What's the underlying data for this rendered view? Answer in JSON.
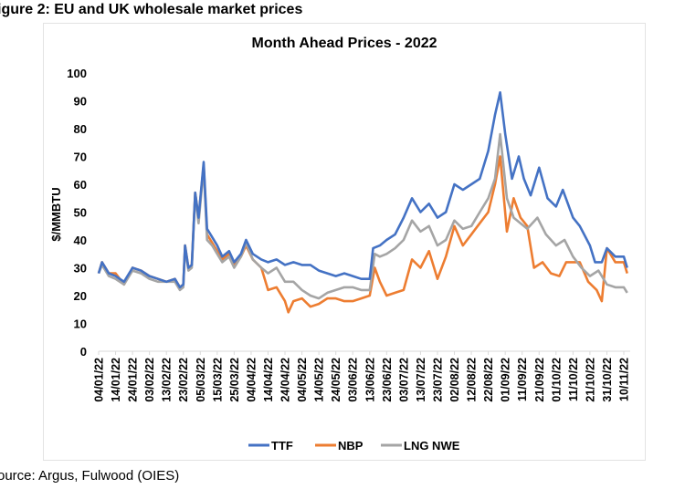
{
  "figure_title": "igure 2: EU and UK wholesale market prices",
  "source": "ource: Argus, Fulwood (OIES)",
  "chart_data": {
    "type": "line",
    "title": "Month Ahead Prices - 2022",
    "ylabel": "$/MMBTU",
    "xlabel": "",
    "ylim": [
      0,
      100
    ],
    "yticks": [
      0,
      10,
      20,
      30,
      40,
      50,
      60,
      70,
      80,
      90,
      100
    ],
    "xtick_labels": [
      "04/01/22",
      "14/01/22",
      "24/01/22",
      "03/02/22",
      "13/02/22",
      "23/02/22",
      "05/03/22",
      "15/03/22",
      "25/03/22",
      "04/04/22",
      "14/04/22",
      "24/04/22",
      "04/05/22",
      "14/05/22",
      "24/05/22",
      "03/06/22",
      "13/06/22",
      "23/06/22",
      "03/07/22",
      "13/07/22",
      "23/07/22",
      "02/08/22",
      "12/08/22",
      "22/08/22",
      "01/09/22",
      "11/09/22",
      "21/09/22",
      "01/10/22",
      "11/10/22",
      "21/10/22",
      "31/10/22",
      "10/11/22"
    ],
    "grid": false,
    "legend_position": "bottom",
    "series": [
      {
        "name": "TTF",
        "color": "#4472C4",
        "points": [
          [
            "04/01/22",
            28
          ],
          [
            "06/01/22",
            32
          ],
          [
            "10/01/22",
            28
          ],
          [
            "14/01/22",
            27
          ],
          [
            "19/01/22",
            25
          ],
          [
            "24/01/22",
            30
          ],
          [
            "29/01/22",
            29
          ],
          [
            "03/02/22",
            27
          ],
          [
            "08/02/22",
            26
          ],
          [
            "13/02/22",
            25
          ],
          [
            "18/02/22",
            26
          ],
          [
            "21/02/22",
            23
          ],
          [
            "23/02/22",
            24
          ],
          [
            "24/02/22",
            38
          ],
          [
            "26/02/22",
            30
          ],
          [
            "28/02/22",
            31
          ],
          [
            "02/03/22",
            57
          ],
          [
            "04/03/22",
            48
          ],
          [
            "07/03/22",
            68
          ],
          [
            "09/03/22",
            44
          ],
          [
            "12/03/22",
            41
          ],
          [
            "15/03/22",
            38
          ],
          [
            "18/03/22",
            34
          ],
          [
            "22/03/22",
            36
          ],
          [
            "25/03/22",
            32
          ],
          [
            "29/03/22",
            35
          ],
          [
            "01/04/22",
            40
          ],
          [
            "05/04/22",
            35
          ],
          [
            "10/04/22",
            33
          ],
          [
            "14/04/22",
            32
          ],
          [
            "19/04/22",
            33
          ],
          [
            "24/04/22",
            31
          ],
          [
            "29/04/22",
            32
          ],
          [
            "04/05/22",
            31
          ],
          [
            "09/05/22",
            31
          ],
          [
            "14/05/22",
            29
          ],
          [
            "19/05/22",
            28
          ],
          [
            "24/05/22",
            27
          ],
          [
            "29/05/22",
            28
          ],
          [
            "03/06/22",
            27
          ],
          [
            "08/06/22",
            26
          ],
          [
            "13/06/22",
            26
          ],
          [
            "15/06/22",
            37
          ],
          [
            "19/06/22",
            38
          ],
          [
            "23/06/22",
            40
          ],
          [
            "28/06/22",
            42
          ],
          [
            "03/07/22",
            48
          ],
          [
            "08/07/22",
            55
          ],
          [
            "13/07/22",
            50
          ],
          [
            "18/07/22",
            53
          ],
          [
            "23/07/22",
            48
          ],
          [
            "28/07/22",
            50
          ],
          [
            "02/08/22",
            60
          ],
          [
            "07/08/22",
            58
          ],
          [
            "12/08/22",
            60
          ],
          [
            "17/08/22",
            62
          ],
          [
            "22/08/22",
            72
          ],
          [
            "26/08/22",
            85
          ],
          [
            "29/08/22",
            93
          ],
          [
            "01/09/22",
            78
          ],
          [
            "05/09/22",
            62
          ],
          [
            "09/09/22",
            70
          ],
          [
            "12/09/22",
            62
          ],
          [
            "16/09/22",
            56
          ],
          [
            "21/09/22",
            66
          ],
          [
            "26/09/22",
            55
          ],
          [
            "01/10/22",
            52
          ],
          [
            "05/10/22",
            58
          ],
          [
            "11/10/22",
            48
          ],
          [
            "15/10/22",
            45
          ],
          [
            "21/10/22",
            38
          ],
          [
            "24/10/22",
            32
          ],
          [
            "28/10/22",
            32
          ],
          [
            "31/10/22",
            37
          ],
          [
            "05/11/22",
            34
          ],
          [
            "10/11/22",
            34
          ],
          [
            "12/11/22",
            30
          ]
        ]
      },
      {
        "name": "NBP",
        "color": "#ED7D31",
        "points": [
          [
            "04/01/22",
            28
          ],
          [
            "06/01/22",
            32
          ],
          [
            "10/01/22",
            28
          ],
          [
            "14/01/22",
            28
          ],
          [
            "19/01/22",
            24
          ],
          [
            "24/01/22",
            30
          ],
          [
            "29/01/22",
            29
          ],
          [
            "03/02/22",
            27
          ],
          [
            "08/02/22",
            26
          ],
          [
            "13/02/22",
            25
          ],
          [
            "18/02/22",
            26
          ],
          [
            "21/02/22",
            23
          ],
          [
            "23/02/22",
            24
          ],
          [
            "24/02/22",
            38
          ],
          [
            "26/02/22",
            30
          ],
          [
            "28/02/22",
            31
          ],
          [
            "02/03/22",
            57
          ],
          [
            "04/03/22",
            48
          ],
          [
            "07/03/22",
            67
          ],
          [
            "09/03/22",
            42
          ],
          [
            "12/03/22",
            39
          ],
          [
            "15/03/22",
            36
          ],
          [
            "18/03/22",
            33
          ],
          [
            "22/03/22",
            35
          ],
          [
            "25/03/22",
            31
          ],
          [
            "29/03/22",
            34
          ],
          [
            "01/04/22",
            38
          ],
          [
            "05/04/22",
            33
          ],
          [
            "10/04/22",
            30
          ],
          [
            "14/04/22",
            22
          ],
          [
            "19/04/22",
            23
          ],
          [
            "24/04/22",
            18
          ],
          [
            "26/04/22",
            14
          ],
          [
            "29/04/22",
            18
          ],
          [
            "04/05/22",
            19
          ],
          [
            "09/05/22",
            16
          ],
          [
            "14/05/22",
            17
          ],
          [
            "19/05/22",
            19
          ],
          [
            "24/05/22",
            19
          ],
          [
            "29/05/22",
            18
          ],
          [
            "03/06/22",
            18
          ],
          [
            "08/06/22",
            19
          ],
          [
            "13/06/22",
            20
          ],
          [
            "16/06/22",
            30
          ],
          [
            "19/06/22",
            25
          ],
          [
            "23/06/22",
            20
          ],
          [
            "28/06/22",
            21
          ],
          [
            "03/07/22",
            22
          ],
          [
            "08/07/22",
            33
          ],
          [
            "13/07/22",
            30
          ],
          [
            "18/07/22",
            36
          ],
          [
            "23/07/22",
            26
          ],
          [
            "28/07/22",
            34
          ],
          [
            "02/08/22",
            45
          ],
          [
            "07/08/22",
            38
          ],
          [
            "12/08/22",
            42
          ],
          [
            "17/08/22",
            46
          ],
          [
            "22/08/22",
            50
          ],
          [
            "26/08/22",
            60
          ],
          [
            "29/08/22",
            70
          ],
          [
            "02/09/22",
            43
          ],
          [
            "06/09/22",
            55
          ],
          [
            "10/09/22",
            48
          ],
          [
            "14/09/22",
            45
          ],
          [
            "18/09/22",
            30
          ],
          [
            "23/09/22",
            32
          ],
          [
            "28/09/22",
            28
          ],
          [
            "03/10/22",
            27
          ],
          [
            "07/10/22",
            32
          ],
          [
            "11/10/22",
            32
          ],
          [
            "15/10/22",
            32
          ],
          [
            "20/10/22",
            25
          ],
          [
            "25/10/22",
            22
          ],
          [
            "28/10/22",
            18
          ],
          [
            "31/10/22",
            37
          ],
          [
            "05/11/22",
            32
          ],
          [
            "10/11/22",
            32
          ],
          [
            "12/11/22",
            28
          ]
        ]
      },
      {
        "name": "LNG NWE",
        "color": "#A5A5A5",
        "points": [
          [
            "04/01/22",
            28
          ],
          [
            "06/01/22",
            31
          ],
          [
            "10/01/22",
            27
          ],
          [
            "14/01/22",
            26
          ],
          [
            "19/01/22",
            24
          ],
          [
            "24/01/22",
            29
          ],
          [
            "29/01/22",
            28
          ],
          [
            "03/02/22",
            26
          ],
          [
            "08/02/22",
            25
          ],
          [
            "13/02/22",
            25
          ],
          [
            "18/02/22",
            25
          ],
          [
            "21/02/22",
            22
          ],
          [
            "23/02/22",
            23
          ],
          [
            "24/02/22",
            37
          ],
          [
            "26/02/22",
            29
          ],
          [
            "28/02/22",
            30
          ],
          [
            "02/03/22",
            56
          ],
          [
            "04/03/22",
            46
          ],
          [
            "07/03/22",
            66
          ],
          [
            "09/03/22",
            40
          ],
          [
            "12/03/22",
            38
          ],
          [
            "15/03/22",
            35
          ],
          [
            "18/03/22",
            32
          ],
          [
            "22/03/22",
            34
          ],
          [
            "25/03/22",
            30
          ],
          [
            "29/03/22",
            34
          ],
          [
            "01/04/22",
            39
          ],
          [
            "05/04/22",
            33
          ],
          [
            "10/04/22",
            30
          ],
          [
            "14/04/22",
            28
          ],
          [
            "19/04/22",
            30
          ],
          [
            "24/04/22",
            25
          ],
          [
            "29/04/22",
            25
          ],
          [
            "04/05/22",
            22
          ],
          [
            "09/05/22",
            20
          ],
          [
            "14/05/22",
            19
          ],
          [
            "19/05/22",
            21
          ],
          [
            "24/05/22",
            22
          ],
          [
            "29/05/22",
            23
          ],
          [
            "03/06/22",
            23
          ],
          [
            "08/06/22",
            22
          ],
          [
            "13/06/22",
            22
          ],
          [
            "16/06/22",
            35
          ],
          [
            "19/06/22",
            34
          ],
          [
            "23/06/22",
            35
          ],
          [
            "28/06/22",
            37
          ],
          [
            "03/07/22",
            40
          ],
          [
            "08/07/22",
            47
          ],
          [
            "13/07/22",
            43
          ],
          [
            "18/07/22",
            45
          ],
          [
            "23/07/22",
            38
          ],
          [
            "28/07/22",
            40
          ],
          [
            "02/08/22",
            47
          ],
          [
            "07/08/22",
            44
          ],
          [
            "12/08/22",
            45
          ],
          [
            "17/08/22",
            50
          ],
          [
            "22/08/22",
            55
          ],
          [
            "26/08/22",
            62
          ],
          [
            "29/08/22",
            78
          ],
          [
            "02/09/22",
            55
          ],
          [
            "06/09/22",
            48
          ],
          [
            "10/09/22",
            46
          ],
          [
            "14/09/22",
            44
          ],
          [
            "20/09/22",
            48
          ],
          [
            "25/09/22",
            42
          ],
          [
            "01/10/22",
            38
          ],
          [
            "06/10/22",
            40
          ],
          [
            "11/10/22",
            34
          ],
          [
            "16/10/22",
            30
          ],
          [
            "21/10/22",
            27
          ],
          [
            "26/10/22",
            29
          ],
          [
            "31/10/22",
            24
          ],
          [
            "05/11/22",
            23
          ],
          [
            "10/11/22",
            23
          ],
          [
            "12/11/22",
            21
          ]
        ]
      }
    ]
  }
}
